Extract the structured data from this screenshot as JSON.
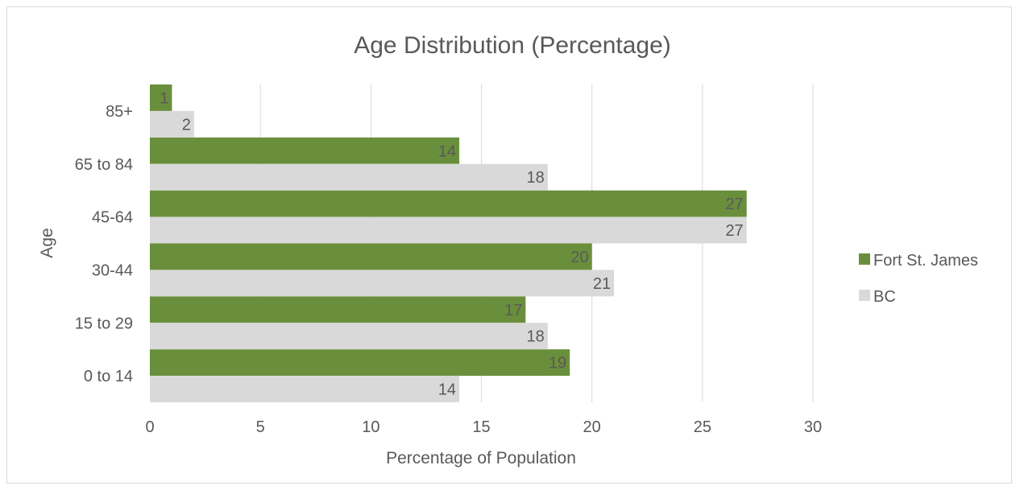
{
  "chart_data": {
    "type": "bar",
    "orientation": "horizontal",
    "title": "Age Distribution (Percentage)",
    "xlabel": "Percentage of Population",
    "ylabel": "Age",
    "categories": [
      "0 to 14",
      "15 to 29",
      "30-44",
      "45-64",
      "65 to 84",
      "85+"
    ],
    "xlim": [
      0,
      30
    ],
    "xticks": [
      "0",
      "5",
      "10",
      "15",
      "20",
      "25",
      "30"
    ],
    "grid": true,
    "legend_position": "right",
    "series": [
      {
        "name": "Fort St. James",
        "color": "#6a8f3c",
        "values": [
          19,
          17,
          20,
          27,
          14,
          1
        ]
      },
      {
        "name": "BC",
        "color": "#d9d9d9",
        "values": [
          14,
          18,
          21,
          27,
          18,
          2
        ]
      }
    ]
  }
}
